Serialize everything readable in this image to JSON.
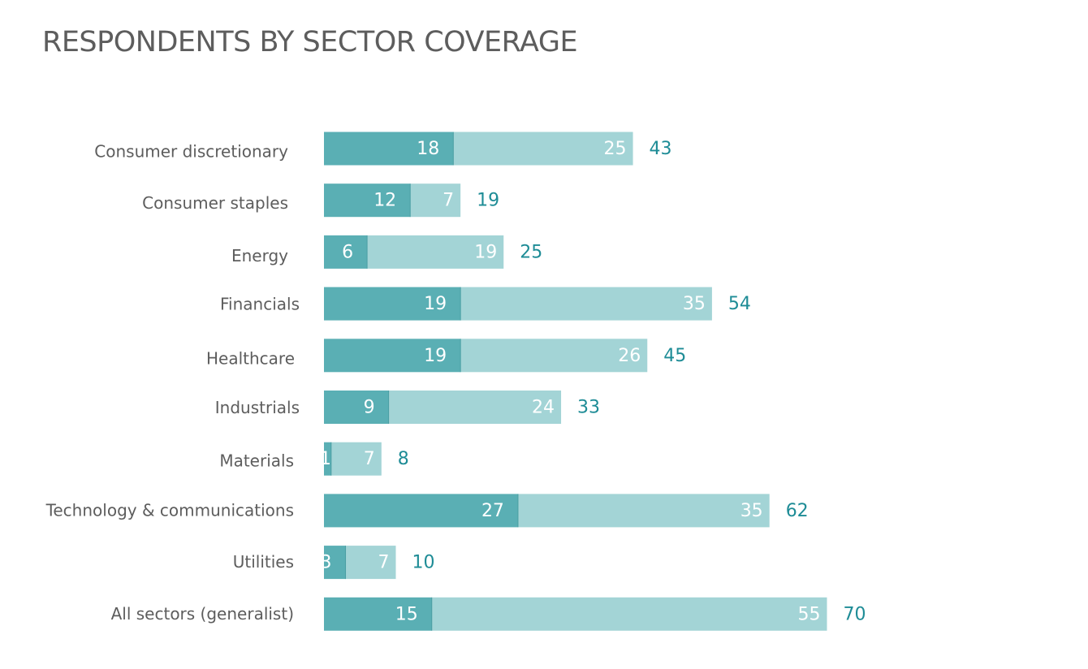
{
  "colors": {
    "seg1": "#5aafb4",
    "seg2": "#a3d4d6",
    "total_label": "#1e8c96",
    "category_label": "#5d5d5d",
    "inside_label": "#ffffff",
    "title": "#5d5d5d"
  },
  "chart_data": {
    "type": "bar",
    "orientation": "horizontal",
    "stacked": true,
    "title": "RESPONDENTS BY SECTOR COVERAGE",
    "xlabel": "",
    "ylabel": "",
    "grid": false,
    "legend": "none",
    "categories": [
      "Consumer discretionary",
      "Consumer staples",
      "Energy",
      "Financials",
      "Healthcare",
      "Industrials",
      "Materials",
      "Technology & communications",
      "Utilities",
      "All sectors (generalist)"
    ],
    "series": [
      {
        "values": [
          18,
          12,
          6,
          19,
          19,
          9,
          1,
          27,
          3,
          15
        ]
      },
      {
        "values": [
          25,
          7,
          19,
          35,
          26,
          24,
          7,
          35,
          7,
          55
        ]
      }
    ],
    "totals": [
      43,
      19,
      25,
      54,
      45,
      33,
      8,
      62,
      10,
      70
    ],
    "xlim": [
      0,
      70
    ]
  }
}
